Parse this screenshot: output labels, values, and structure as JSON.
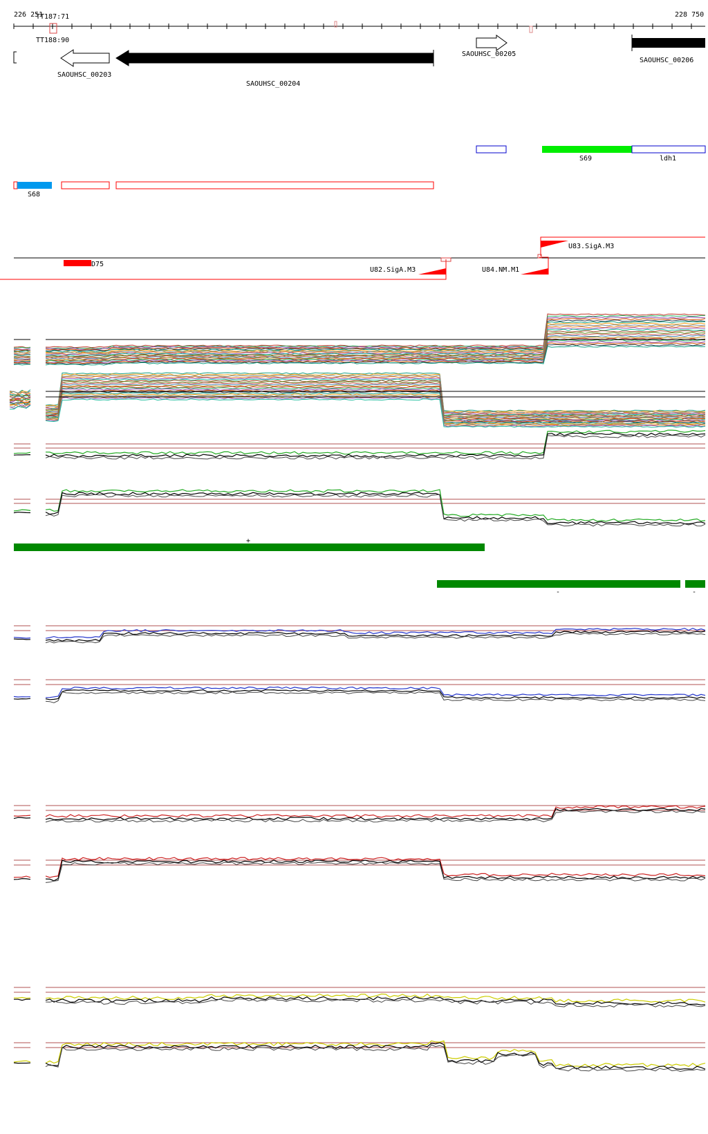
{
  "ruler": {
    "start": "226 251",
    "end": "228 750",
    "terminators": [
      "TT187:71",
      "TT188:90"
    ]
  },
  "genes": [
    {
      "label": "SAOUHSC_00203",
      "strand": "-",
      "style": "outline"
    },
    {
      "label": "SAOUHSC_00204",
      "strand": "-",
      "style": "filled"
    },
    {
      "label": "SAOUHSC_00205",
      "strand": "+",
      "style": "outline"
    },
    {
      "label": "SAOUHSC_00206",
      "strand": "+",
      "style": "filled"
    }
  ],
  "features": {
    "forward": [
      "S69",
      "ldh1"
    ],
    "reverse": [
      "S68"
    ]
  },
  "promoters": {
    "tracks": [
      "U83.SigA.M3",
      "D75",
      "U82.SigA.M3",
      "U84.NM.M1"
    ]
  },
  "segments": {
    "plus_marker": "+",
    "minus_marker": "-"
  },
  "colors": {
    "gene": "#000000",
    "feature_red": "#ff0000",
    "feature_blue": "#0000cc",
    "feature_green": "#00ee00",
    "feature_cyan": "#0099ee",
    "segment": "#008800",
    "threshold": "#b05050",
    "series_green": "#22aa22",
    "series_blue": "#2233cc",
    "series_red": "#cc2222",
    "series_yellow": "#cccc00"
  }
}
